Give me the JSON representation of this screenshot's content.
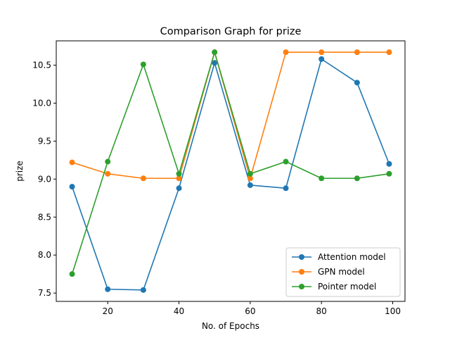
{
  "chart_data": {
    "type": "line",
    "title": "Comparison Graph for prize",
    "xlabel": "No. of Epochs",
    "ylabel": "prize",
    "xlim": [
      5.55,
      103.45
    ],
    "ylim": [
      7.39,
      10.82
    ],
    "xticks": [
      20,
      40,
      60,
      80,
      100
    ],
    "yticks": [
      7.5,
      8.0,
      8.5,
      9.0,
      9.5,
      10.0,
      10.5
    ],
    "xtick_labels": [
      "20",
      "40",
      "60",
      "80",
      "100"
    ],
    "ytick_labels": [
      "7.5",
      "8.0",
      "8.5",
      "9.0",
      "9.5",
      "10.0",
      "10.5"
    ],
    "grid": false,
    "legend_position": "lower-right",
    "x": [
      10,
      20,
      30,
      40,
      50,
      60,
      70,
      80,
      90,
      99
    ],
    "series": [
      {
        "name": "Attention model",
        "color": "#1f77b4",
        "values": [
          8.9,
          7.55,
          7.54,
          8.88,
          10.53,
          8.92,
          8.88,
          10.58,
          10.27,
          9.2
        ]
      },
      {
        "name": "GPN model",
        "color": "#ff7f0e",
        "values": [
          9.22,
          9.07,
          9.01,
          9.01,
          10.67,
          9.01,
          10.67,
          10.67,
          10.67,
          10.67
        ]
      },
      {
        "name": "Pointer model",
        "color": "#2ca02c",
        "values": [
          7.75,
          9.23,
          10.51,
          9.07,
          10.67,
          9.07,
          9.23,
          9.01,
          9.01,
          9.07
        ]
      }
    ]
  }
}
